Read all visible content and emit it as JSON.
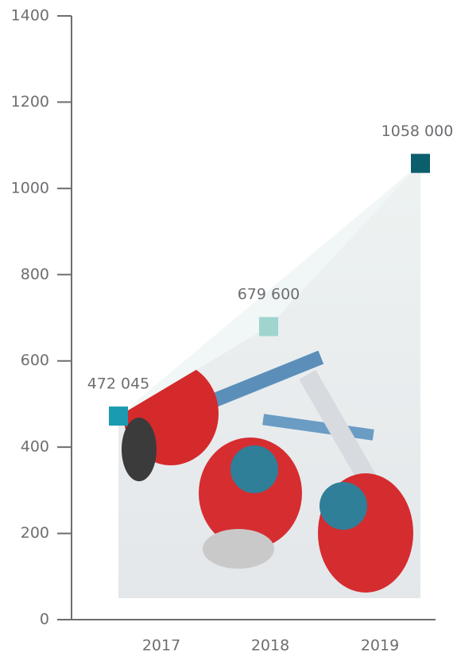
{
  "chart_data": {
    "type": "area-markers",
    "categories": [
      "2017",
      "2018",
      "2019"
    ],
    "values": [
      472.045,
      679.6,
      1058
    ],
    "value_labels": [
      "472 045",
      "679 600",
      "1058 000"
    ],
    "colors": [
      "#1a9bb1",
      "#9fd4cf",
      "#0b5e6c"
    ],
    "ylim": [
      0,
      1400
    ],
    "yticks": [
      0,
      200,
      400,
      600,
      800,
      1000,
      1200,
      1400
    ]
  }
}
